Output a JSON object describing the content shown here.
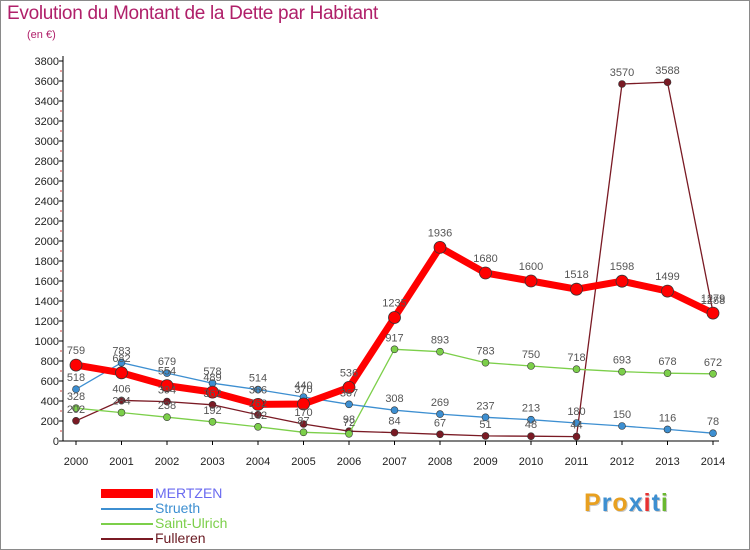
{
  "header": {
    "title": "Evolution du Montant de la Dette par Habitant",
    "subtitle": "(en €)"
  },
  "brand": {
    "letters": [
      "P",
      "r",
      "o",
      "x",
      "i",
      "t",
      "i"
    ],
    "colors": [
      "#e8a020",
      "#3d8fd1",
      "#e8a020",
      "#3d8fd1",
      "#e83030",
      "#3d8fd1",
      "#6ab830"
    ]
  },
  "chart_data": {
    "type": "line",
    "title": "Evolution du Montant de la Dette par Habitant",
    "ylabel": "(en €)",
    "xlabel": "",
    "categories": [
      "2000",
      "2001",
      "2002",
      "2003",
      "2004",
      "2005",
      "2006",
      "2007",
      "2008",
      "2009",
      "2010",
      "2011",
      "2012",
      "2013",
      "2014"
    ],
    "ylim": [
      0,
      3800
    ],
    "yticks": [
      0,
      200,
      400,
      600,
      800,
      1000,
      1200,
      1400,
      1600,
      1800,
      2000,
      2200,
      2400,
      2600,
      2800,
      3000,
      3200,
      3400,
      3600,
      3800
    ],
    "grid": false,
    "legend_position": "bottom-left",
    "series": [
      {
        "name": "MERTZEN",
        "color": "#ff0000",
        "values": [
          759,
          682,
          554,
          489,
          366,
          370,
          536,
          1235,
          1936,
          1680,
          1600,
          1518,
          1598,
          1499,
          1279
        ]
      },
      {
        "name": "Strueth",
        "color": "#3d8fd1",
        "values": [
          518,
          783,
          679,
          578,
          514,
          440,
          367,
          308,
          269,
          237,
          213,
          180,
          150,
          116,
          78
        ]
      },
      {
        "name": "Saint-Ulrich",
        "color": "#7ccf4a",
        "values": [
          328,
          284,
          238,
          192,
          142,
          87,
          72,
          917,
          893,
          783,
          750,
          718,
          693,
          678,
          672
        ]
      },
      {
        "name": "Fulleren",
        "color": "#7a1a24",
        "values": [
          202,
          406,
          394,
          362,
          262,
          170,
          98,
          84,
          67,
          51,
          48,
          44,
          3570,
          3588,
          1288
        ]
      }
    ]
  }
}
